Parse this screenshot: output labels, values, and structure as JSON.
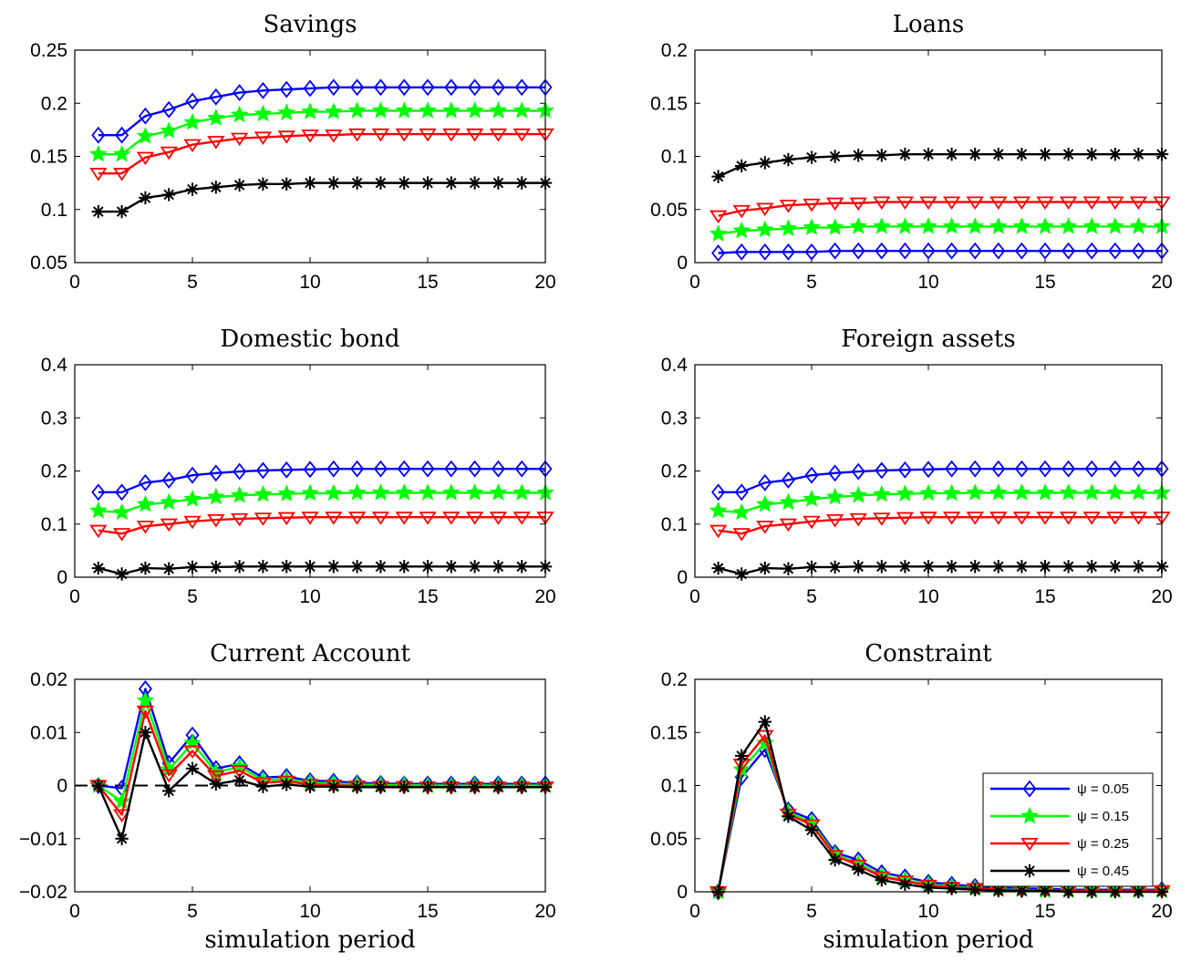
{
  "chart_data": [
    {
      "type": "line",
      "title": "Savings",
      "xlabel": "",
      "xlim": [
        0,
        20
      ],
      "ylim": [
        0.05,
        0.25
      ],
      "xticks": [
        0,
        5,
        10,
        15,
        20
      ],
      "yticks": [
        0.05,
        0.1,
        0.15,
        0.2,
        0.25
      ],
      "ytick_labels": [
        "0.05",
        "0.1",
        "0.15",
        "0.2",
        "0.25"
      ],
      "x": [
        1,
        2,
        3,
        4,
        5,
        6,
        7,
        8,
        9,
        10,
        11,
        12,
        13,
        14,
        15,
        16,
        17,
        18,
        19,
        20
      ],
      "series": [
        {
          "values": [
            0.17,
            0.17,
            0.188,
            0.194,
            0.202,
            0.206,
            0.21,
            0.212,
            0.213,
            0.214,
            0.215,
            0.215,
            0.215,
            0.215,
            0.215,
            0.215,
            0.215,
            0.215,
            0.215,
            0.215
          ]
        },
        {
          "values": [
            0.152,
            0.152,
            0.169,
            0.174,
            0.182,
            0.186,
            0.189,
            0.19,
            0.191,
            0.192,
            0.192,
            0.193,
            0.193,
            0.193,
            0.193,
            0.193,
            0.193,
            0.193,
            0.193,
            0.193
          ]
        },
        {
          "values": [
            0.134,
            0.134,
            0.149,
            0.154,
            0.161,
            0.164,
            0.167,
            0.168,
            0.169,
            0.17,
            0.17,
            0.171,
            0.171,
            0.171,
            0.171,
            0.171,
            0.171,
            0.171,
            0.171,
            0.171
          ]
        },
        {
          "values": [
            0.098,
            0.098,
            0.111,
            0.114,
            0.119,
            0.121,
            0.123,
            0.124,
            0.124,
            0.125,
            0.125,
            0.125,
            0.125,
            0.125,
            0.125,
            0.125,
            0.125,
            0.125,
            0.125,
            0.125
          ]
        }
      ]
    },
    {
      "type": "line",
      "title": "Loans",
      "xlabel": "",
      "xlim": [
        0,
        20
      ],
      "ylim": [
        0,
        0.2
      ],
      "xticks": [
        0,
        5,
        10,
        15,
        20
      ],
      "yticks": [
        0,
        0.05,
        0.1,
        0.15,
        0.2
      ],
      "ytick_labels": [
        "0",
        "0.05",
        "0.1",
        "0.15",
        "0.2"
      ],
      "x": [
        1,
        2,
        3,
        4,
        5,
        6,
        7,
        8,
        9,
        10,
        11,
        12,
        13,
        14,
        15,
        16,
        17,
        18,
        19,
        20
      ],
      "series": [
        {
          "values": [
            0.009,
            0.01,
            0.01,
            0.01,
            0.01,
            0.011,
            0.011,
            0.011,
            0.011,
            0.011,
            0.011,
            0.011,
            0.011,
            0.011,
            0.011,
            0.011,
            0.011,
            0.011,
            0.011,
            0.011
          ]
        },
        {
          "values": [
            0.027,
            0.03,
            0.031,
            0.032,
            0.033,
            0.033,
            0.034,
            0.034,
            0.034,
            0.034,
            0.034,
            0.034,
            0.034,
            0.034,
            0.034,
            0.034,
            0.034,
            0.034,
            0.034,
            0.034
          ]
        },
        {
          "values": [
            0.044,
            0.049,
            0.051,
            0.054,
            0.055,
            0.056,
            0.056,
            0.057,
            0.057,
            0.057,
            0.057,
            0.057,
            0.057,
            0.057,
            0.057,
            0.057,
            0.057,
            0.057,
            0.057,
            0.057
          ]
        },
        {
          "values": [
            0.081,
            0.091,
            0.094,
            0.097,
            0.099,
            0.1,
            0.101,
            0.101,
            0.102,
            0.102,
            0.102,
            0.102,
            0.102,
            0.102,
            0.102,
            0.102,
            0.102,
            0.102,
            0.102,
            0.102
          ]
        }
      ]
    },
    {
      "type": "line",
      "title": "Domestic bond",
      "xlabel": "",
      "xlim": [
        0,
        20
      ],
      "ylim": [
        0,
        0.4
      ],
      "xticks": [
        0,
        5,
        10,
        15,
        20
      ],
      "yticks": [
        0,
        0.1,
        0.2,
        0.3,
        0.4
      ],
      "ytick_labels": [
        "0",
        "0.1",
        "0.2",
        "0.3",
        "0.4"
      ],
      "x": [
        1,
        2,
        3,
        4,
        5,
        6,
        7,
        8,
        9,
        10,
        11,
        12,
        13,
        14,
        15,
        16,
        17,
        18,
        19,
        20
      ],
      "series": [
        {
          "values": [
            0.16,
            0.16,
            0.178,
            0.183,
            0.192,
            0.196,
            0.199,
            0.201,
            0.202,
            0.203,
            0.204,
            0.204,
            0.204,
            0.204,
            0.204,
            0.204,
            0.204,
            0.204,
            0.204,
            0.204
          ]
        },
        {
          "values": [
            0.125,
            0.122,
            0.137,
            0.141,
            0.147,
            0.151,
            0.154,
            0.156,
            0.157,
            0.158,
            0.158,
            0.159,
            0.159,
            0.159,
            0.159,
            0.159,
            0.159,
            0.159,
            0.159,
            0.159
          ]
        },
        {
          "values": [
            0.088,
            0.082,
            0.096,
            0.1,
            0.105,
            0.108,
            0.11,
            0.111,
            0.112,
            0.113,
            0.113,
            0.113,
            0.113,
            0.113,
            0.113,
            0.113,
            0.113,
            0.113,
            0.113,
            0.113
          ]
        },
        {
          "values": [
            0.017,
            0.006,
            0.017,
            0.016,
            0.019,
            0.019,
            0.02,
            0.02,
            0.02,
            0.02,
            0.02,
            0.02,
            0.02,
            0.02,
            0.02,
            0.02,
            0.02,
            0.02,
            0.02,
            0.02
          ]
        }
      ]
    },
    {
      "type": "line",
      "title": "Foreign assets",
      "xlabel": "",
      "xlim": [
        0,
        20
      ],
      "ylim": [
        0,
        0.4
      ],
      "xticks": [
        0,
        5,
        10,
        15,
        20
      ],
      "yticks": [
        0,
        0.1,
        0.2,
        0.3,
        0.4
      ],
      "ytick_labels": [
        "0",
        "0.1",
        "0.2",
        "0.3",
        "0.4"
      ],
      "x": [
        1,
        2,
        3,
        4,
        5,
        6,
        7,
        8,
        9,
        10,
        11,
        12,
        13,
        14,
        15,
        16,
        17,
        18,
        19,
        20
      ],
      "series": [
        {
          "values": [
            0.16,
            0.16,
            0.178,
            0.183,
            0.192,
            0.196,
            0.199,
            0.201,
            0.202,
            0.203,
            0.204,
            0.204,
            0.204,
            0.204,
            0.204,
            0.204,
            0.204,
            0.204,
            0.204,
            0.204
          ]
        },
        {
          "values": [
            0.125,
            0.122,
            0.137,
            0.141,
            0.147,
            0.151,
            0.154,
            0.156,
            0.157,
            0.158,
            0.158,
            0.159,
            0.159,
            0.159,
            0.159,
            0.159,
            0.159,
            0.159,
            0.159,
            0.159
          ]
        },
        {
          "values": [
            0.088,
            0.082,
            0.096,
            0.1,
            0.105,
            0.108,
            0.11,
            0.111,
            0.112,
            0.113,
            0.113,
            0.113,
            0.113,
            0.113,
            0.113,
            0.113,
            0.113,
            0.113,
            0.113,
            0.113
          ]
        },
        {
          "values": [
            0.017,
            0.006,
            0.017,
            0.016,
            0.019,
            0.019,
            0.02,
            0.02,
            0.02,
            0.02,
            0.02,
            0.02,
            0.02,
            0.02,
            0.02,
            0.02,
            0.02,
            0.02,
            0.02,
            0.02
          ]
        }
      ]
    },
    {
      "type": "line",
      "title": "Current Account",
      "xlabel": "simulation period",
      "xlim": [
        0,
        20
      ],
      "ylim": [
        -0.02,
        0.02
      ],
      "xticks": [
        0,
        5,
        10,
        15,
        20
      ],
      "yticks": [
        -0.02,
        -0.01,
        0,
        0.01,
        0.02
      ],
      "ytick_labels": [
        "−0.02",
        "−0.01",
        "0",
        "0.01",
        "0.02"
      ],
      "zero_line": true,
      "x": [
        1,
        2,
        3,
        4,
        5,
        6,
        7,
        8,
        9,
        10,
        11,
        12,
        13,
        14,
        15,
        16,
        17,
        18,
        19,
        20
      ],
      "series": [
        {
          "values": [
            0,
            -0.0005,
            0.0182,
            0.0042,
            0.0095,
            0.0032,
            0.0041,
            0.0015,
            0.0017,
            0.0009,
            0.0008,
            0.0005,
            0.0004,
            0.0003,
            0.0003,
            0.0003,
            0.0003,
            0.0003,
            0.0003,
            0.0003
          ]
        },
        {
          "values": [
            0,
            -0.003,
            0.016,
            0.003,
            0.008,
            0.0025,
            0.0035,
            0.001,
            0.0012,
            0.0005,
            0.0004,
            0.0002,
            0.0001,
            0.0001,
            0.0,
            0.0,
            0.0,
            0.0,
            0.0,
            0.0
          ]
        },
        {
          "values": [
            0,
            -0.0055,
            0.014,
            0.002,
            0.0065,
            0.0018,
            0.0028,
            0.0005,
            0.0008,
            0.0002,
            0.0001,
            -0.0001,
            -0.0002,
            -0.0002,
            -0.0003,
            -0.0003,
            -0.0003,
            -0.0003,
            -0.0003,
            -0.0003
          ]
        },
        {
          "values": [
            0,
            -0.01,
            0.01,
            -0.001,
            0.0032,
            0.0003,
            0.001,
            -0.0002,
            0.0002,
            -0.0002,
            -0.0002,
            -0.0003,
            -0.0003,
            -0.0003,
            -0.0003,
            -0.0003,
            -0.0003,
            -0.0003,
            -0.0003,
            -0.0003
          ]
        }
      ]
    },
    {
      "type": "line",
      "title": "Constraint",
      "xlabel": "simulation period",
      "xlim": [
        0,
        20
      ],
      "ylim": [
        0,
        0.2
      ],
      "xticks": [
        0,
        5,
        10,
        15,
        20
      ],
      "yticks": [
        0,
        0.05,
        0.1,
        0.15,
        0.2
      ],
      "ytick_labels": [
        "0",
        "0.05",
        "0.1",
        "0.15",
        "0.2"
      ],
      "legend": "lower-right",
      "x": [
        1,
        2,
        3,
        4,
        5,
        6,
        7,
        8,
        9,
        10,
        11,
        12,
        13,
        14,
        15,
        16,
        17,
        18,
        19,
        20
      ],
      "series": [
        {
          "name": "ψ = 0.05",
          "values": [
            0,
            0.108,
            0.134,
            0.077,
            0.068,
            0.037,
            0.03,
            0.018,
            0.014,
            0.009,
            0.007,
            0.005,
            0.004,
            0.003,
            0.003,
            0.002,
            0.002,
            0.002,
            0.002,
            0.002
          ]
        },
        {
          "name": "ψ = 0.15",
          "values": [
            0,
            0.115,
            0.14,
            0.075,
            0.065,
            0.035,
            0.027,
            0.015,
            0.011,
            0.007,
            0.005,
            0.003,
            0.002,
            0.002,
            0.001,
            0.001,
            0.001,
            0.001,
            0.001,
            0.001
          ]
        },
        {
          "name": "ψ = 0.25",
          "values": [
            0,
            0.12,
            0.147,
            0.073,
            0.063,
            0.034,
            0.025,
            0.014,
            0.01,
            0.006,
            0.004,
            0.003,
            0.002,
            0.001,
            0.001,
            0.001,
            0.001,
            0.001,
            0.001,
            0.001
          ]
        },
        {
          "name": "ψ = 0.45",
          "values": [
            0,
            0.128,
            0.16,
            0.071,
            0.058,
            0.03,
            0.021,
            0.011,
            0.007,
            0.004,
            0.003,
            0.002,
            0.001,
            0.001,
            0.001,
            0.0,
            0.0,
            0.0,
            0.0,
            0.0
          ]
        }
      ]
    }
  ],
  "colors": [
    "#0000ff",
    "#00ff00",
    "#ff0000",
    "#000000"
  ],
  "markers": [
    "diamond",
    "star",
    "triangle-down",
    "asterisk"
  ]
}
